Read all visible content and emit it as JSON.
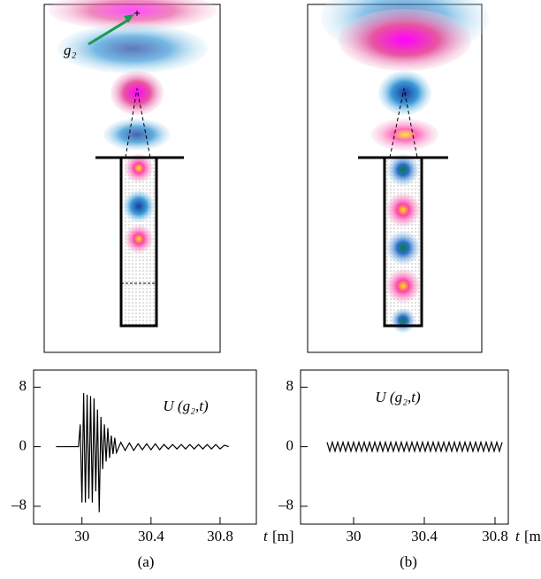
{
  "panels": [
    {
      "caption": "(a)",
      "field_label": "g₂"
    },
    {
      "caption": "(b)"
    }
  ],
  "chart_data": [
    {
      "type": "line",
      "annotation": "U (g₂,t)",
      "x_label_var": "t",
      "x_label_unit": "[m]",
      "color": "#000000",
      "xlim": [
        29.72,
        31.01
      ],
      "ylim": [
        -10.4,
        10.3
      ],
      "xticks": [
        30,
        30.4,
        30.8
      ],
      "yticks": [
        {
          "value": 8,
          "label": "8"
        },
        0,
        {
          "value": -8,
          "label": "–8"
        }
      ],
      "x": [
        29.85,
        29.98,
        29.99,
        30.0,
        30.01,
        30.02,
        30.03,
        30.04,
        30.05,
        30.06,
        30.07,
        30.08,
        30.09,
        30.1,
        30.11,
        30.12,
        30.13,
        30.14,
        30.15,
        30.16,
        30.17,
        30.18,
        30.19,
        30.2,
        30.225,
        30.25,
        30.275,
        30.3,
        30.325,
        30.35,
        30.375,
        30.4,
        30.425,
        30.45,
        30.475,
        30.5,
        30.525,
        30.55,
        30.575,
        30.6,
        30.625,
        30.65,
        30.675,
        30.7,
        30.725,
        30.75,
        30.775,
        30.8,
        30.825,
        30.85
      ],
      "values": [
        0,
        0,
        3,
        -7.5,
        7.2,
        -7.5,
        7,
        -7,
        6.8,
        -7.5,
        6.5,
        -6,
        5,
        -8.8,
        4,
        -3,
        3,
        -2,
        2.5,
        -1.5,
        1.5,
        -1,
        1.2,
        -0.8,
        0.6,
        -0.5,
        0.5,
        -0.5,
        0.4,
        -0.4,
        0.4,
        -0.4,
        0.4,
        -0.4,
        0.3,
        -0.3,
        0.3,
        -0.3,
        0.3,
        -0.3,
        0.3,
        -0.3,
        0.3,
        -0.3,
        0.3,
        -0.3,
        0.3,
        -0.3,
        0.2,
        0
      ]
    },
    {
      "type": "line",
      "annotation": "U (g₂,t)",
      "x_label_var": "t",
      "x_label_unit": "[m]",
      "color": "#000000",
      "xlim": [
        29.7,
        30.875
      ],
      "ylim": [
        -10.4,
        10.3
      ],
      "xticks": [
        30,
        30.4,
        30.8
      ],
      "yticks": [
        {
          "value": 8,
          "label": "8"
        },
        0,
        {
          "value": -8,
          "label": "–8"
        }
      ],
      "x": [
        29.85,
        29.865,
        29.88,
        29.895,
        29.91,
        29.925,
        29.94,
        29.955,
        29.97,
        29.985,
        30.0,
        30.015,
        30.03,
        30.045,
        30.06,
        30.075,
        30.09,
        30.105,
        30.12,
        30.135,
        30.15,
        30.165,
        30.18,
        30.195,
        30.21,
        30.225,
        30.24,
        30.255,
        30.27,
        30.285,
        30.3,
        30.315,
        30.33,
        30.345,
        30.36,
        30.375,
        30.39,
        30.405,
        30.42,
        30.435,
        30.45,
        30.465,
        30.48,
        30.495,
        30.51,
        30.525,
        30.54,
        30.555,
        30.57,
        30.585,
        30.6,
        30.615,
        30.63,
        30.645,
        30.66,
        30.675,
        30.69,
        30.705,
        30.72,
        30.735,
        30.75,
        30.765,
        30.78,
        30.795,
        30.81,
        30.825,
        30.84
      ],
      "values": [
        0.6,
        -0.6,
        0.6,
        -0.6,
        0.6,
        -0.6,
        0.6,
        -0.6,
        0.6,
        -0.6,
        0.6,
        -0.6,
        0.6,
        -0.6,
        0.6,
        -0.6,
        0.6,
        -0.6,
        0.6,
        -0.6,
        0.6,
        -0.6,
        0.6,
        -0.6,
        0.6,
        -0.6,
        0.6,
        -0.6,
        0.6,
        -0.6,
        0.6,
        -0.6,
        0.6,
        -0.6,
        0.6,
        -0.6,
        0.6,
        -0.6,
        0.6,
        -0.6,
        0.6,
        -0.6,
        0.6,
        -0.6,
        0.6,
        -0.6,
        0.6,
        -0.6,
        0.6,
        -0.6,
        0.6,
        -0.6,
        0.6,
        -0.6,
        0.6,
        -0.6,
        0.6,
        -0.6,
        0.6,
        -0.6,
        0.6,
        -0.6,
        0.6,
        -0.6,
        0.6,
        -0.6,
        0.6
      ]
    }
  ]
}
